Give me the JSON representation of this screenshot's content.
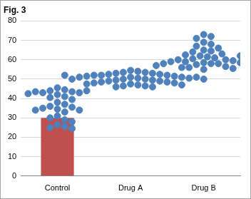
{
  "chart_data": {
    "type": "bar",
    "title": "Fig. 3",
    "categories": [
      "Control",
      "Drug A",
      "Drug B"
    ],
    "series": [
      {
        "type": "bar",
        "color": "#c0504d",
        "values": [
          30,
          null,
          null
        ]
      },
      {
        "type": "scatter",
        "marker": "circle",
        "color": "#4f81bd",
        "values": [
          [
            45.5,
            44.5,
            44,
            43.5,
            43,
            43,
            43.5,
            44,
            42.5,
            42,
            41,
            40.5,
            39.5,
            38,
            37,
            36,
            35.5,
            35,
            34.5,
            34,
            34,
            33,
            31,
            30,
            29,
            28,
            26.5,
            25.5,
            25,
            24.5
          ],
          [
            54.5,
            54,
            53.5,
            53.5,
            53,
            53,
            52.5,
            52.5,
            52,
            52,
            52,
            51.5,
            51.5,
            51,
            51,
            51,
            50.5,
            50.5,
            50,
            50,
            50,
            49.5,
            49.5,
            49,
            49,
            48.5,
            48.5,
            48,
            48,
            47.5,
            47.5,
            47,
            47,
            46.5,
            46.5,
            46,
            46,
            51,
            52,
            50
          ],
          [
            73,
            72,
            71,
            69,
            68,
            67,
            66,
            65,
            64.5,
            64,
            63,
            62.5,
            62,
            61.5,
            61,
            60.5,
            60,
            60,
            59.5,
            59,
            59,
            58.5,
            58.5,
            58,
            58,
            58,
            57.5,
            57,
            57,
            56.5,
            56,
            56,
            55.5,
            55,
            62
          ]
        ]
      }
    ],
    "ylim": [
      0,
      80
    ],
    "yticks": [
      0,
      10,
      20,
      30,
      40,
      50,
      60,
      70,
      80
    ],
    "grid": true
  }
}
